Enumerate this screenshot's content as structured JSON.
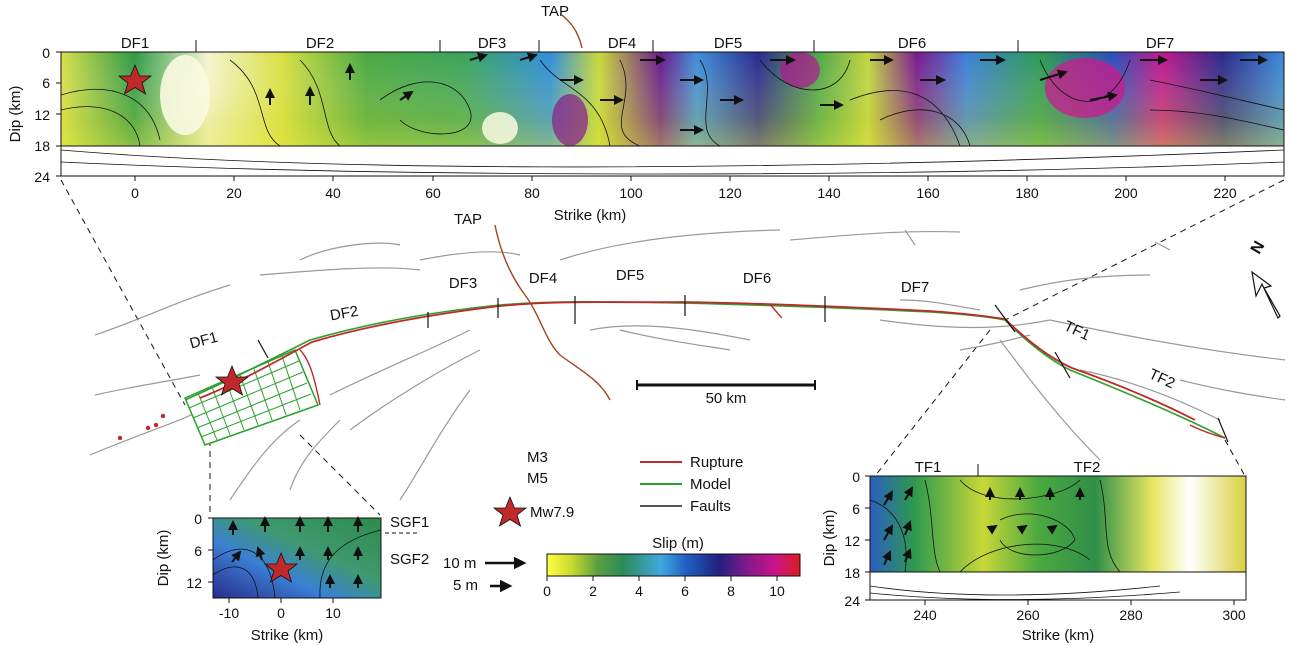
{
  "top_panel": {
    "ylabel": "Dip (km)",
    "xlabel": "Strike (km)",
    "yticks": [
      "0",
      "6",
      "12",
      "18",
      "24"
    ],
    "xticks": [
      "0",
      "20",
      "40",
      "60",
      "80",
      "100",
      "120",
      "140",
      "160",
      "180",
      "200",
      "220"
    ],
    "segments": [
      "DF1",
      "DF2",
      "DF3",
      "DF4",
      "DF5",
      "DF6",
      "DF7"
    ],
    "tap_label": "TAP"
  },
  "map": {
    "segments": [
      "DF1",
      "DF2",
      "DF3",
      "DF4",
      "DF5",
      "DF6",
      "DF7",
      "TF1",
      "TF2"
    ],
    "tap_label": "TAP",
    "scale_label": "50 km",
    "north_label": "N"
  },
  "left_panel": {
    "ylabel": "Dip (km)",
    "xlabel": "Strike (km)",
    "yticks": [
      "0",
      "6",
      "12"
    ],
    "xticks": [
      "-10",
      "0",
      "10"
    ],
    "segments": [
      "SGF1",
      "SGF2"
    ]
  },
  "right_panel": {
    "ylabel": "Dip (km)",
    "xlabel": "Strike (km)",
    "yticks": [
      "0",
      "6",
      "12",
      "18",
      "24"
    ],
    "xticks": [
      "240",
      "260",
      "280",
      "300"
    ],
    "segments": [
      "TF1",
      "TF2"
    ]
  },
  "legend": {
    "m3": "M3",
    "m5": "M5",
    "mw": "Mw7.9",
    "rupture": "Rupture",
    "model": "Model",
    "faults": "Faults",
    "arrow_10": "10 m",
    "arrow_5": "5 m",
    "colors": {
      "rupture": "#c0282a",
      "model": "#2ca02c",
      "faults": "#999999",
      "tap": "#a0461e",
      "star": "#c0282a"
    }
  },
  "colorbar": {
    "title": "Slip (m)",
    "ticks": [
      "0",
      "2",
      "4",
      "6",
      "8",
      "10"
    ],
    "stops": [
      "#ffff40",
      "#c8d830",
      "#5aa040",
      "#2e8b57",
      "#40a8e0",
      "#2060c0",
      "#202080",
      "#7a1a8a",
      "#c8148a",
      "#d81e1e"
    ]
  }
}
